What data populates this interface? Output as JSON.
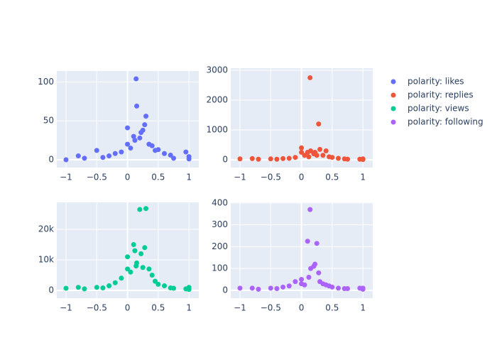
{
  "chart_data": [
    {
      "type": "scatter",
      "x": [
        -1,
        -0.8,
        -0.7,
        -0.5,
        -0.4,
        -0.3,
        -0.2,
        -0.1,
        0,
        0,
        0.05,
        0.1,
        0.12,
        0.14,
        0.15,
        0.2,
        0.22,
        0.25,
        0.28,
        0.3,
        0.35,
        0.4,
        0.45,
        0.5,
        0.6,
        0.7,
        0.95,
        1,
        1,
        0.75
      ],
      "series": [
        {
          "name": "polarity: likes",
          "color": "#636efa",
          "values": [
            0,
            5,
            2,
            12,
            3,
            5,
            8,
            10,
            41,
            20,
            15,
            30,
            25,
            104,
            69,
            28,
            35,
            38,
            45,
            56,
            20,
            18,
            12,
            13,
            8,
            6,
            10,
            4,
            1,
            2
          ]
        }
      ],
      "xlim": [
        -1.15,
        1.16
      ],
      "ylim": [
        -10,
        114
      ],
      "xticks": [
        {
          "value": -1,
          "label": "−1"
        },
        {
          "value": -0.5,
          "label": "−0.5"
        },
        0,
        0.5,
        1
      ],
      "yticks": [
        0,
        50,
        100
      ],
      "grid": true
    },
    {
      "type": "scatter",
      "x": [
        -1,
        -0.8,
        -0.7,
        -0.5,
        -0.4,
        -0.3,
        -0.2,
        -0.1,
        0,
        0,
        0.05,
        0.1,
        0.12,
        0.14,
        0.15,
        0.2,
        0.22,
        0.25,
        0.28,
        0.3,
        0.35,
        0.4,
        0.45,
        0.5,
        0.6,
        0.7,
        0.95,
        1,
        1,
        0.75
      ],
      "series": [
        {
          "name": "polarity: replies",
          "color": "#EF553B",
          "values": [
            30,
            40,
            20,
            30,
            20,
            40,
            50,
            80,
            400,
            250,
            150,
            250,
            100,
            2750,
            300,
            200,
            250,
            150,
            1200,
            350,
            150,
            300,
            100,
            80,
            50,
            30,
            20,
            30,
            10,
            20
          ]
        }
      ],
      "xlim": [
        -1.15,
        1.16
      ],
      "ylim": [
        -260,
        3070
      ],
      "xticks": [
        {
          "value": -1,
          "label": "−1"
        },
        {
          "value": -0.5,
          "label": "−0.5"
        },
        0,
        0.5,
        1
      ],
      "yticks": [
        0,
        1000,
        2000,
        3000
      ],
      "grid": true
    },
    {
      "type": "scatter",
      "x": [
        -1,
        -0.8,
        -0.7,
        -0.5,
        -0.4,
        -0.3,
        -0.2,
        -0.1,
        0,
        0,
        0.05,
        0.1,
        0.12,
        0.14,
        0.15,
        0.2,
        0.22,
        0.25,
        0.28,
        0.3,
        0.35,
        0.4,
        0.45,
        0.5,
        0.6,
        0.7,
        0.95,
        1,
        1,
        0.75
      ],
      "series": [
        {
          "name": "polarity: views",
          "color": "#00cc96",
          "values": [
            700,
            1000,
            500,
            1000,
            800,
            1500,
            2500,
            4000,
            11000,
            7000,
            6000,
            15000,
            13000,
            8000,
            9000,
            26500,
            12000,
            7500,
            14000,
            26800,
            7000,
            5000,
            3000,
            2000,
            1500,
            800,
            500,
            1000,
            300,
            700
          ]
        }
      ],
      "xlim": [
        -1.15,
        1.16
      ],
      "ylim": [
        -2560,
        28840
      ],
      "xticks": [
        {
          "value": -1,
          "label": "−1"
        },
        {
          "value": -0.5,
          "label": "−0.5"
        },
        0,
        0.5,
        1
      ],
      "yticks": [
        0,
        {
          "value": 10000,
          "label": "10k"
        },
        {
          "value": 20000,
          "label": "20k"
        }
      ],
      "grid": true
    },
    {
      "type": "scatter",
      "x": [
        -1,
        -0.8,
        -0.7,
        -0.5,
        -0.4,
        -0.3,
        -0.2,
        -0.1,
        0,
        0,
        0.05,
        0.1,
        0.12,
        0.14,
        0.15,
        0.2,
        0.22,
        0.25,
        0.28,
        0.3,
        0.35,
        0.4,
        0.45,
        0.5,
        0.6,
        0.7,
        0.95,
        1,
        1,
        0.75
      ],
      "series": [
        {
          "name": "polarity: following",
          "color": "#ab63fa",
          "values": [
            10,
            10,
            5,
            10,
            8,
            15,
            20,
            40,
            50,
            30,
            25,
            225,
            60,
            370,
            100,
            110,
            120,
            215,
            80,
            40,
            30,
            25,
            20,
            15,
            10,
            8,
            10,
            5,
            10,
            8
          ]
        }
      ],
      "xlim": [
        -1.15,
        1.16
      ],
      "ylim": [
        -36,
        403
      ],
      "xticks": [
        {
          "value": -1,
          "label": "−1"
        },
        {
          "value": -0.5,
          "label": "−0.5"
        },
        0,
        0.5,
        1
      ],
      "yticks": [
        0,
        100,
        200,
        300,
        400
      ],
      "grid": true
    }
  ]
}
